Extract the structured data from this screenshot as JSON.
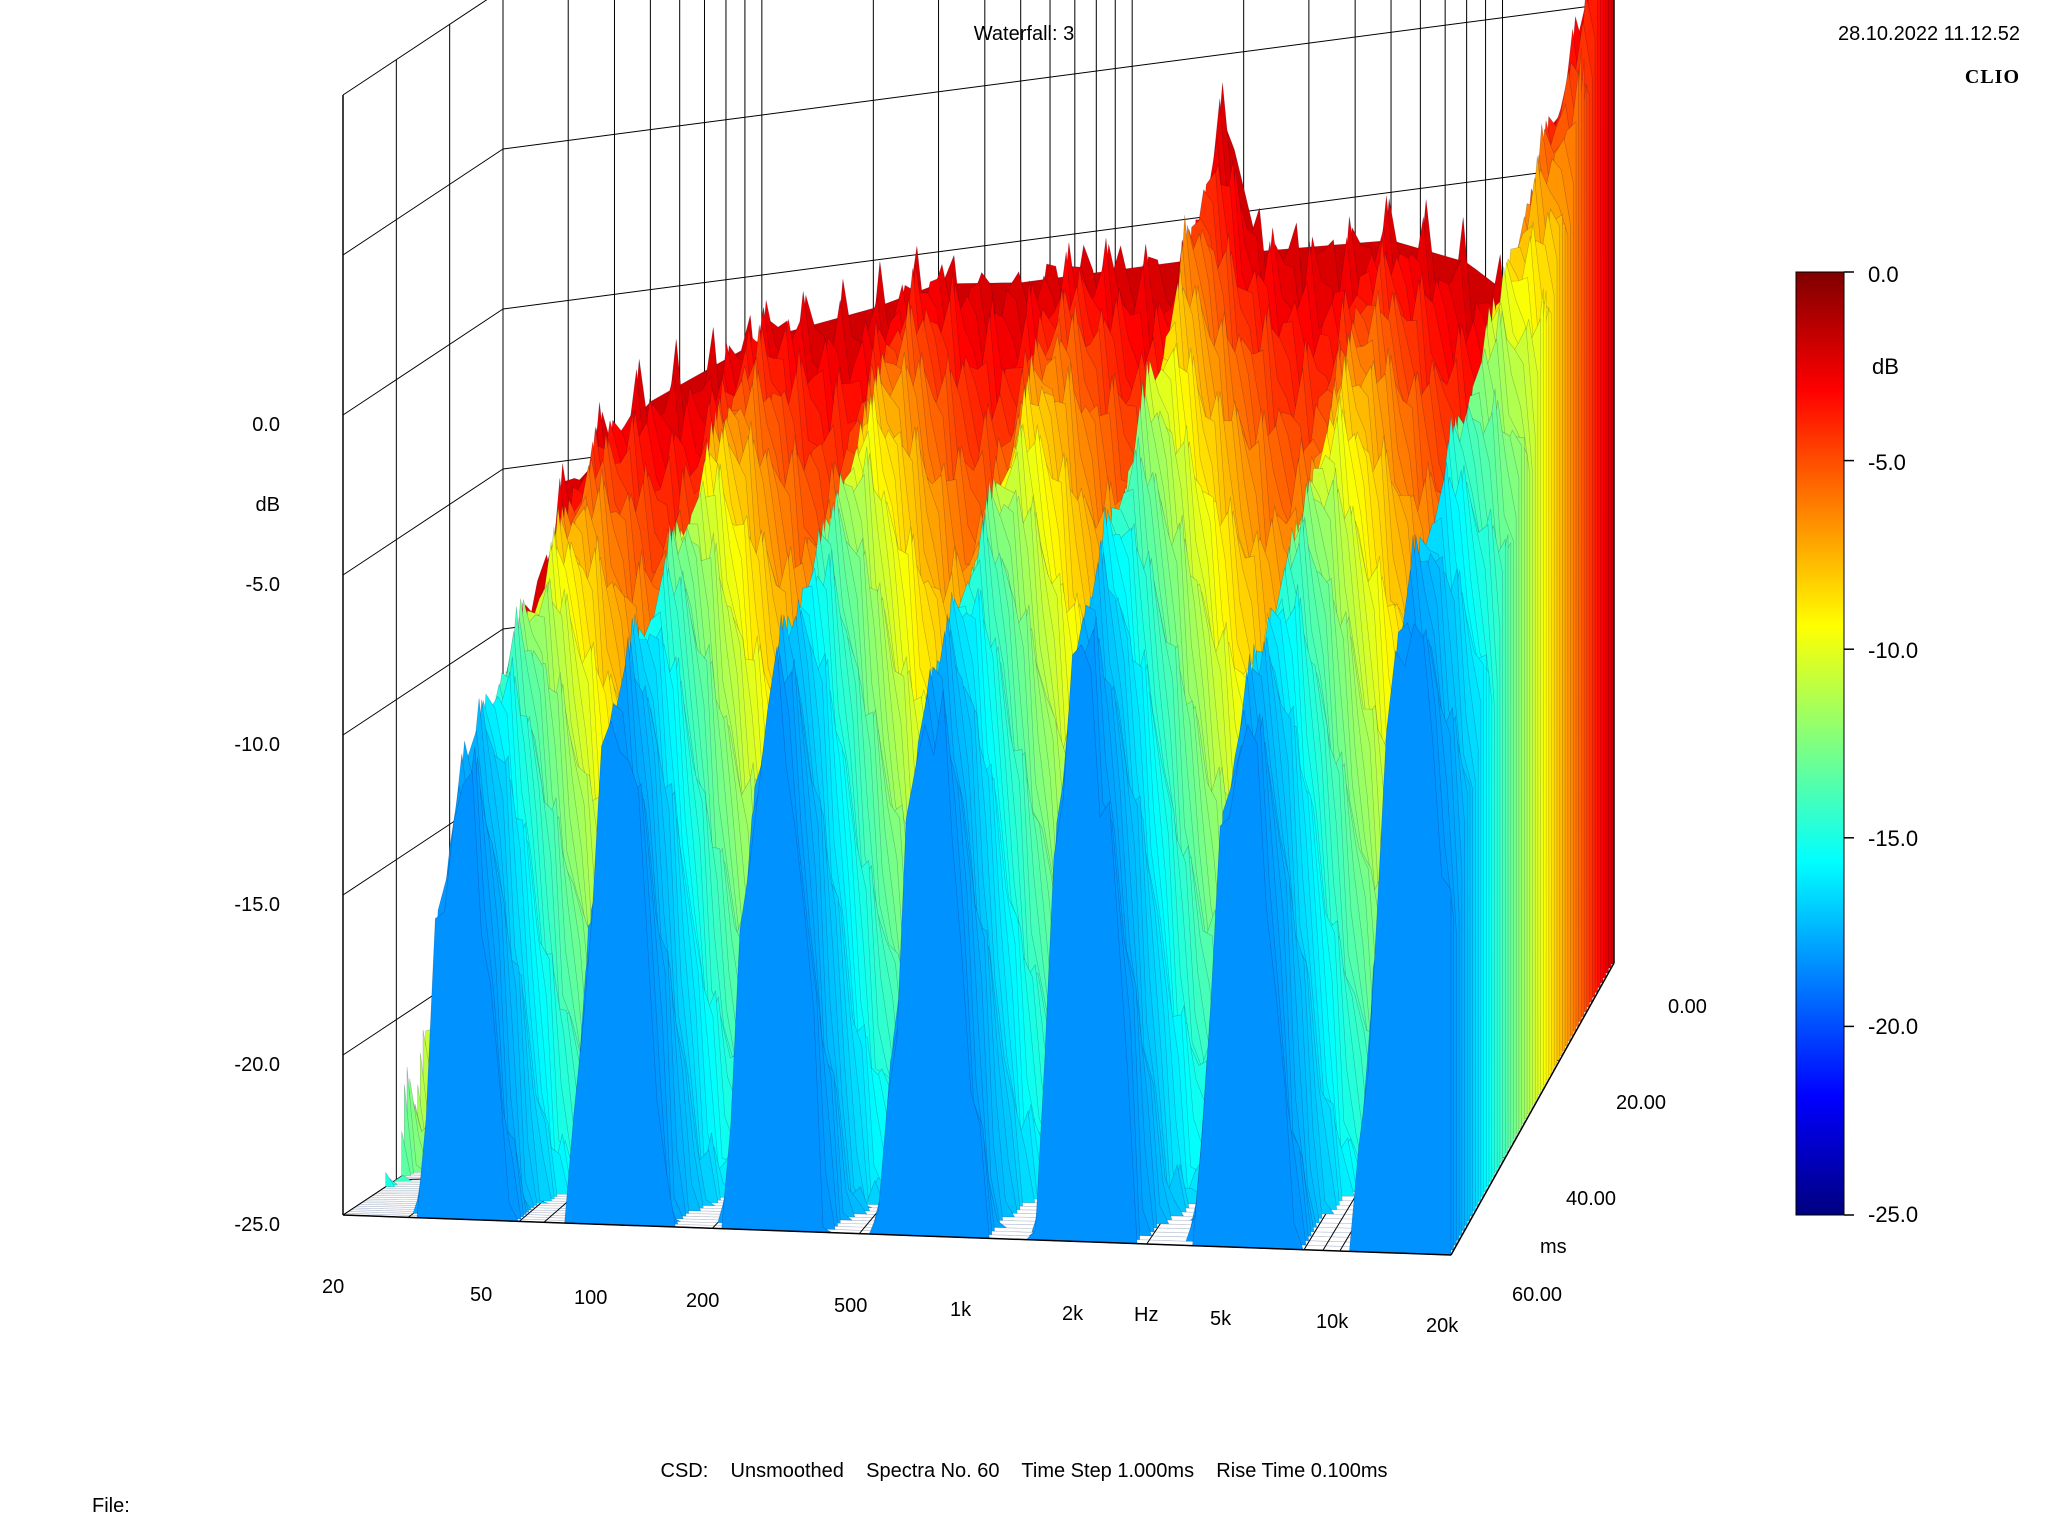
{
  "header": {
    "title": "Waterfall: 3",
    "timestamp": "28.10.2022 11.12.52",
    "logo_text": "CLIO"
  },
  "footer": {
    "info": "CSD:    Unsmoothed    Spectra No. 60    Time Step 1.000ms    Rise Time 0.100ms",
    "file_label": "File:"
  },
  "chart_data": {
    "type": "waterfall",
    "title": "Waterfall: 3",
    "x_axis": {
      "label": "Hz",
      "scale": "log",
      "range": [
        20,
        20000
      ],
      "ticks": [
        "20",
        "50",
        "100",
        "200",
        "500",
        "1k",
        "2k",
        "5k",
        "10k",
        "20k"
      ]
    },
    "y_axis": {
      "label": "dB",
      "range": [
        -25,
        0
      ],
      "ticks": [
        "0.0",
        "-5.0",
        "-10.0",
        "-15.0",
        "-20.0",
        "-25.0"
      ]
    },
    "z_axis": {
      "label": "ms",
      "range": [
        0,
        60
      ],
      "ticks": [
        "0.00",
        "20.00",
        "40.00",
        "60.00"
      ]
    },
    "colorbar": {
      "label": "dB",
      "range": [
        -25,
        0
      ],
      "ticks": [
        "0.0",
        "-5.0",
        "-10.0",
        "-15.0",
        "-20.0",
        "-25.0"
      ],
      "colormap": [
        "#00007f",
        "#0000ff",
        "#007fff",
        "#00ffff",
        "#7fff7f",
        "#ffff00",
        "#ff7f00",
        "#ff0000",
        "#7f0000"
      ]
    },
    "settings": {
      "smoothing": "Unsmoothed",
      "spectra_count": 60,
      "time_step_ms": 1.0,
      "rise_time_ms": 0.1
    },
    "first_slice_db": [
      {
        "hz": 20,
        "db": -12.5
      },
      {
        "hz": 30,
        "db": -6.0
      },
      {
        "hz": 50,
        "db": -3.5
      },
      {
        "hz": 100,
        "db": -2.0
      },
      {
        "hz": 200,
        "db": -1.5
      },
      {
        "hz": 300,
        "db": -1.0
      },
      {
        "hz": 500,
        "db": -1.3
      },
      {
        "hz": 1000,
        "db": -1.3
      },
      {
        "hz": 1500,
        "db": -1.3
      },
      {
        "hz": 1800,
        "db": 3.0
      },
      {
        "hz": 2200,
        "db": -1.3
      },
      {
        "hz": 5000,
        "db": -1.5
      },
      {
        "hz": 8000,
        "db": -2.5
      },
      {
        "hz": 10000,
        "db": -3.5
      },
      {
        "hz": 12000,
        "db": -3.0
      },
      {
        "hz": 15000,
        "db": 2.0
      },
      {
        "hz": 20000,
        "db": 8.0
      }
    ],
    "decay_db_per_ms": 0.3,
    "floor_db": -25.0,
    "grid": true
  }
}
